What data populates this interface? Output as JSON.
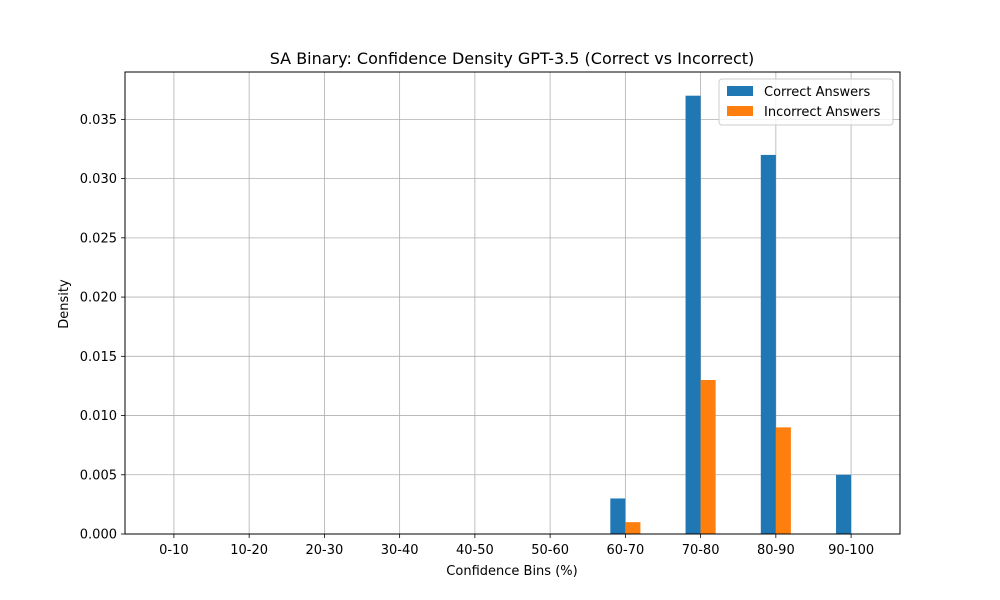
{
  "chart_data": {
    "type": "bar",
    "title": "SA Binary: Confidence Density GPT-3.5 (Correct vs Incorrect)",
    "xlabel": "Confidence Bins (%)",
    "ylabel": "Density",
    "categories": [
      "0-10",
      "10-20",
      "20-30",
      "30-40",
      "40-50",
      "50-60",
      "60-70",
      "70-80",
      "80-90",
      "90-100"
    ],
    "ylim": [
      0,
      0.039
    ],
    "yticks": [
      "0.000",
      "0.005",
      "0.010",
      "0.015",
      "0.020",
      "0.025",
      "0.030",
      "0.035"
    ],
    "grid": true,
    "legend_position": "top-right",
    "series": [
      {
        "name": "Correct Answers",
        "color": "#1f77b4",
        "values": [
          0,
          0,
          0,
          0,
          0,
          0,
          0.003,
          0.037,
          0.032,
          0.005
        ]
      },
      {
        "name": "Incorrect Answers",
        "color": "#ff7f0e",
        "values": [
          0,
          0,
          0,
          0,
          0,
          0,
          0.001,
          0.013,
          0.009,
          0
        ]
      }
    ]
  }
}
